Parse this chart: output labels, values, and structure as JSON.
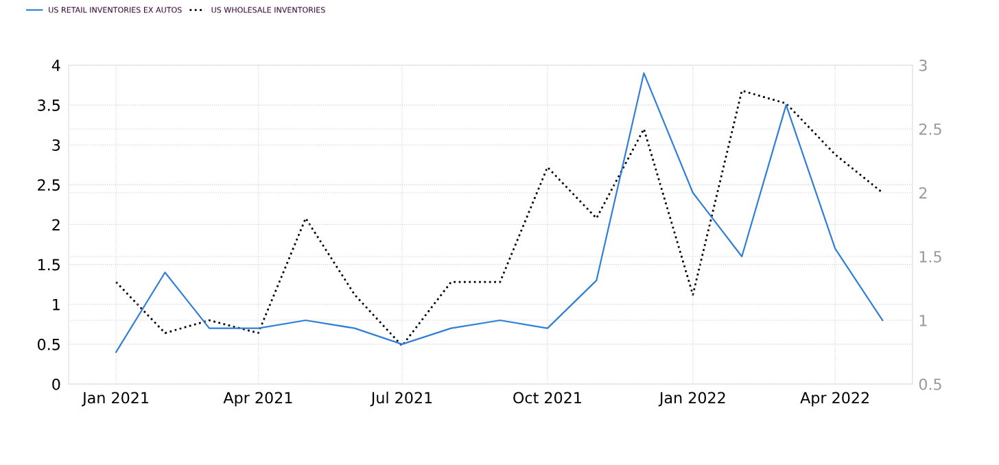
{
  "chart_data": {
    "type": "line",
    "x": [
      "2021-01-01",
      "2021-02-01",
      "2021-03-01",
      "2021-04-01",
      "2021-05-01",
      "2021-06-01",
      "2021-07-01",
      "2021-08-01",
      "2021-09-01",
      "2021-10-01",
      "2021-11-01",
      "2021-12-01",
      "2022-01-01",
      "2022-02-01",
      "2022-03-01",
      "2022-04-01",
      "2022-05-01"
    ],
    "series": [
      {
        "name": "US RETAIL INVENTORIES EX AUTOS",
        "color": "#2f7ed8",
        "values": [
          0.4,
          1.4,
          0.7,
          0.7,
          0.8,
          0.7,
          0.5,
          0.7,
          0.8,
          0.7,
          1.3,
          3.9,
          2.4,
          1.6,
          3.5,
          1.7,
          0.8
        ]
      },
      {
        "name": "US WHOLESALE INVENTORIES",
        "color": "#000000",
        "line_style": "dotted",
        "axis": "y2",
        "values": [
          1.3,
          0.9,
          1.0,
          0.9,
          1.8,
          1.2,
          0.8,
          1.3,
          1.3,
          2.2,
          1.8,
          2.5,
          1.2,
          2.8,
          2.7,
          2.3,
          2.0
        ]
      }
    ],
    "xlim": [
      "2020-12-02",
      "2022-05-20"
    ],
    "xticks": [
      {
        "value": "2021-01-01",
        "label": "Jan 2021"
      },
      {
        "value": "2021-04-01",
        "label": "Apr 2021"
      },
      {
        "value": "2021-07-01",
        "label": "Jul 2021"
      },
      {
        "value": "2021-10-01",
        "label": "Oct 2021"
      },
      {
        "value": "2022-01-01",
        "label": "Jan 2022"
      },
      {
        "value": "2022-04-01",
        "label": "Apr 2022"
      }
    ],
    "ylim": [
      0,
      4
    ],
    "yticks": [
      0,
      0.5,
      1,
      1.5,
      2,
      2.5,
      3,
      3.5,
      4
    ],
    "y2lim": [
      0.5,
      3
    ],
    "y2ticks": [
      0.5,
      1,
      1.5,
      2,
      2.5,
      3
    ],
    "grid": true,
    "legend": "top left",
    "line_style": "solid",
    "marker": "none"
  }
}
